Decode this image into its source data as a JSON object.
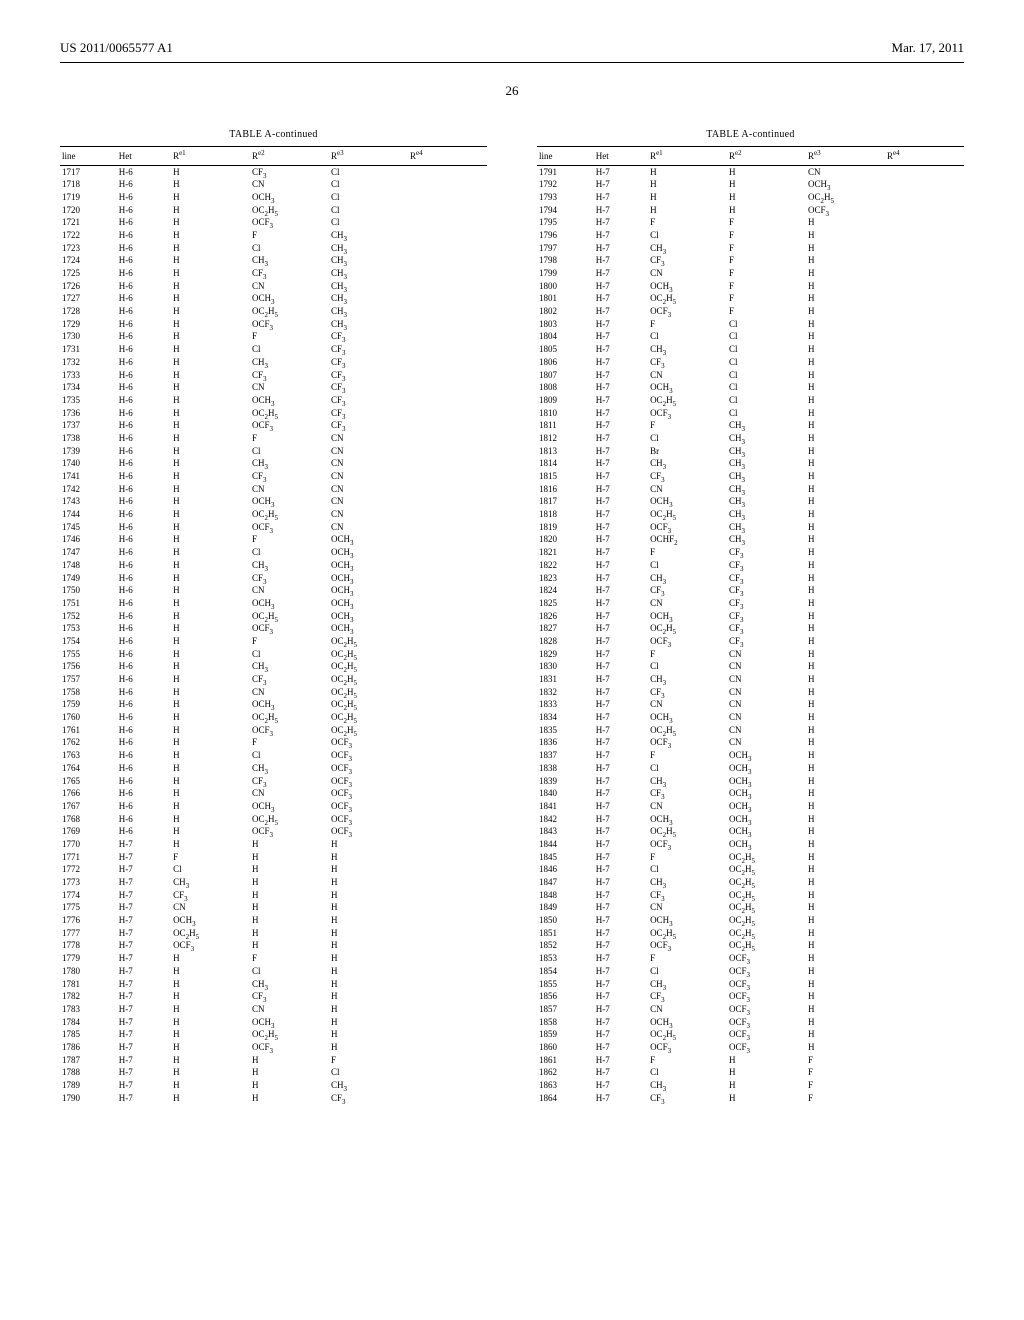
{
  "header": {
    "pub_number": "US 2011/0065577 A1",
    "pub_date": "Mar. 17, 2011"
  },
  "page_number": "26",
  "table_title": "TABLE A-continued",
  "columns": [
    "line",
    "Het",
    "R^e1",
    "R^e2",
    "R^e3",
    "R^e4"
  ],
  "left_table": {
    "rows": [
      [
        "1717",
        "H-6",
        "H",
        "CF3",
        "Cl",
        ""
      ],
      [
        "1718",
        "H-6",
        "H",
        "CN",
        "Cl",
        ""
      ],
      [
        "1719",
        "H-6",
        "H",
        "OCH3",
        "Cl",
        ""
      ],
      [
        "1720",
        "H-6",
        "H",
        "OC2H5",
        "Cl",
        ""
      ],
      [
        "1721",
        "H-6",
        "H",
        "OCF3",
        "Cl",
        ""
      ],
      [
        "1722",
        "H-6",
        "H",
        "F",
        "CH3",
        ""
      ],
      [
        "1723",
        "H-6",
        "H",
        "Cl",
        "CH3",
        ""
      ],
      [
        "1724",
        "H-6",
        "H",
        "CH3",
        "CH3",
        ""
      ],
      [
        "1725",
        "H-6",
        "H",
        "CF3",
        "CH3",
        ""
      ],
      [
        "1726",
        "H-6",
        "H",
        "CN",
        "CH3",
        ""
      ],
      [
        "1727",
        "H-6",
        "H",
        "OCH3",
        "CH3",
        ""
      ],
      [
        "1728",
        "H-6",
        "H",
        "OC2H5",
        "CH3",
        ""
      ],
      [
        "1729",
        "H-6",
        "H",
        "OCF3",
        "CH3",
        ""
      ],
      [
        "1730",
        "H-6",
        "H",
        "F",
        "CF3",
        ""
      ],
      [
        "1731",
        "H-6",
        "H",
        "Cl",
        "CF3",
        ""
      ],
      [
        "1732",
        "H-6",
        "H",
        "CH3",
        "CF3",
        ""
      ],
      [
        "1733",
        "H-6",
        "H",
        "CF3",
        "CF3",
        ""
      ],
      [
        "1734",
        "H-6",
        "H",
        "CN",
        "CF3",
        ""
      ],
      [
        "1735",
        "H-6",
        "H",
        "OCH3",
        "CF3",
        ""
      ],
      [
        "1736",
        "H-6",
        "H",
        "OC2H5",
        "CF3",
        ""
      ],
      [
        "1737",
        "H-6",
        "H",
        "OCF3",
        "CF3",
        ""
      ],
      [
        "1738",
        "H-6",
        "H",
        "F",
        "CN",
        ""
      ],
      [
        "1739",
        "H-6",
        "H",
        "Cl",
        "CN",
        ""
      ],
      [
        "1740",
        "H-6",
        "H",
        "CH3",
        "CN",
        ""
      ],
      [
        "1741",
        "H-6",
        "H",
        "CF3",
        "CN",
        ""
      ],
      [
        "1742",
        "H-6",
        "H",
        "CN",
        "CN",
        ""
      ],
      [
        "1743",
        "H-6",
        "H",
        "OCH3",
        "CN",
        ""
      ],
      [
        "1744",
        "H-6",
        "H",
        "OC2H5",
        "CN",
        ""
      ],
      [
        "1745",
        "H-6",
        "H",
        "OCF3",
        "CN",
        ""
      ],
      [
        "1746",
        "H-6",
        "H",
        "F",
        "OCH3",
        ""
      ],
      [
        "1747",
        "H-6",
        "H",
        "Cl",
        "OCH3",
        ""
      ],
      [
        "1748",
        "H-6",
        "H",
        "CH3",
        "OCH3",
        ""
      ],
      [
        "1749",
        "H-6",
        "H",
        "CF3",
        "OCH3",
        ""
      ],
      [
        "1750",
        "H-6",
        "H",
        "CN",
        "OCH3",
        ""
      ],
      [
        "1751",
        "H-6",
        "H",
        "OCH3",
        "OCH3",
        ""
      ],
      [
        "1752",
        "H-6",
        "H",
        "OC2H5",
        "OCH3",
        ""
      ],
      [
        "1753",
        "H-6",
        "H",
        "OCF3",
        "OCH3",
        ""
      ],
      [
        "1754",
        "H-6",
        "H",
        "F",
        "OC2H5",
        ""
      ],
      [
        "1755",
        "H-6",
        "H",
        "Cl",
        "OC2H5",
        ""
      ],
      [
        "1756",
        "H-6",
        "H",
        "CH3",
        "OC2H5",
        ""
      ],
      [
        "1757",
        "H-6",
        "H",
        "CF3",
        "OC2H5",
        ""
      ],
      [
        "1758",
        "H-6",
        "H",
        "CN",
        "OC2H5",
        ""
      ],
      [
        "1759",
        "H-6",
        "H",
        "OCH3",
        "OC2H5",
        ""
      ],
      [
        "1760",
        "H-6",
        "H",
        "OC2H5",
        "OC2H5",
        ""
      ],
      [
        "1761",
        "H-6",
        "H",
        "OCF3",
        "OC2H5",
        ""
      ],
      [
        "1762",
        "H-6",
        "H",
        "F",
        "OCF3",
        ""
      ],
      [
        "1763",
        "H-6",
        "H",
        "Cl",
        "OCF3",
        ""
      ],
      [
        "1764",
        "H-6",
        "H",
        "CH3",
        "OCF3",
        ""
      ],
      [
        "1765",
        "H-6",
        "H",
        "CF3",
        "OCF3",
        ""
      ],
      [
        "1766",
        "H-6",
        "H",
        "CN",
        "OCF3",
        ""
      ],
      [
        "1767",
        "H-6",
        "H",
        "OCH3",
        "OCF3",
        ""
      ],
      [
        "1768",
        "H-6",
        "H",
        "OC2H5",
        "OCF3",
        ""
      ],
      [
        "1769",
        "H-6",
        "H",
        "OCF3",
        "OCF3",
        ""
      ],
      [
        "1770",
        "H-7",
        "H",
        "H",
        "H",
        ""
      ],
      [
        "1771",
        "H-7",
        "F",
        "H",
        "H",
        ""
      ],
      [
        "1772",
        "H-7",
        "Cl",
        "H",
        "H",
        ""
      ],
      [
        "1773",
        "H-7",
        "CH3",
        "H",
        "H",
        ""
      ],
      [
        "1774",
        "H-7",
        "CF3",
        "H",
        "H",
        ""
      ],
      [
        "1775",
        "H-7",
        "CN",
        "H",
        "H",
        ""
      ],
      [
        "1776",
        "H-7",
        "OCH3",
        "H",
        "H",
        ""
      ],
      [
        "1777",
        "H-7",
        "OC2H5",
        "H",
        "H",
        ""
      ],
      [
        "1778",
        "H-7",
        "OCF3",
        "H",
        "H",
        ""
      ],
      [
        "1779",
        "H-7",
        "H",
        "F",
        "H",
        ""
      ],
      [
        "1780",
        "H-7",
        "H",
        "Cl",
        "H",
        ""
      ],
      [
        "1781",
        "H-7",
        "H",
        "CH3",
        "H",
        ""
      ],
      [
        "1782",
        "H-7",
        "H",
        "CF3",
        "H",
        ""
      ],
      [
        "1783",
        "H-7",
        "H",
        "CN",
        "H",
        ""
      ],
      [
        "1784",
        "H-7",
        "H",
        "OCH3",
        "H",
        ""
      ],
      [
        "1785",
        "H-7",
        "H",
        "OC2H5",
        "H",
        ""
      ],
      [
        "1786",
        "H-7",
        "H",
        "OCF3",
        "H",
        ""
      ],
      [
        "1787",
        "H-7",
        "H",
        "H",
        "F",
        ""
      ],
      [
        "1788",
        "H-7",
        "H",
        "H",
        "Cl",
        ""
      ],
      [
        "1789",
        "H-7",
        "H",
        "H",
        "CH3",
        ""
      ],
      [
        "1790",
        "H-7",
        "H",
        "H",
        "CF3",
        ""
      ]
    ]
  },
  "right_table": {
    "rows": [
      [
        "1791",
        "H-7",
        "H",
        "H",
        "CN",
        ""
      ],
      [
        "1792",
        "H-7",
        "H",
        "H",
        "OCH3",
        ""
      ],
      [
        "1793",
        "H-7",
        "H",
        "H",
        "OC2H5",
        ""
      ],
      [
        "1794",
        "H-7",
        "H",
        "H",
        "OCF3",
        ""
      ],
      [
        "1795",
        "H-7",
        "F",
        "F",
        "H",
        ""
      ],
      [
        "1796",
        "H-7",
        "Cl",
        "F",
        "H",
        ""
      ],
      [
        "1797",
        "H-7",
        "CH3",
        "F",
        "H",
        ""
      ],
      [
        "1798",
        "H-7",
        "CF3",
        "F",
        "H",
        ""
      ],
      [
        "1799",
        "H-7",
        "CN",
        "F",
        "H",
        ""
      ],
      [
        "1800",
        "H-7",
        "OCH3",
        "F",
        "H",
        ""
      ],
      [
        "1801",
        "H-7",
        "OC2H5",
        "F",
        "H",
        ""
      ],
      [
        "1802",
        "H-7",
        "OCF3",
        "F",
        "H",
        ""
      ],
      [
        "1803",
        "H-7",
        "F",
        "Cl",
        "H",
        ""
      ],
      [
        "1804",
        "H-7",
        "Cl",
        "Cl",
        "H",
        ""
      ],
      [
        "1805",
        "H-7",
        "CH3",
        "Cl",
        "H",
        ""
      ],
      [
        "1806",
        "H-7",
        "CF3",
        "Cl",
        "H",
        ""
      ],
      [
        "1807",
        "H-7",
        "CN",
        "Cl",
        "H",
        ""
      ],
      [
        "1808",
        "H-7",
        "OCH3",
        "Cl",
        "H",
        ""
      ],
      [
        "1809",
        "H-7",
        "OC2H5",
        "Cl",
        "H",
        ""
      ],
      [
        "1810",
        "H-7",
        "OCF3",
        "Cl",
        "H",
        ""
      ],
      [
        "1811",
        "H-7",
        "F",
        "CH3",
        "H",
        ""
      ],
      [
        "1812",
        "H-7",
        "Cl",
        "CH3",
        "H",
        ""
      ],
      [
        "1813",
        "H-7",
        "Br",
        "CH3",
        "H",
        ""
      ],
      [
        "1814",
        "H-7",
        "CH3",
        "CH3",
        "H",
        ""
      ],
      [
        "1815",
        "H-7",
        "CF3",
        "CH3",
        "H",
        ""
      ],
      [
        "1816",
        "H-7",
        "CN",
        "CH3",
        "H",
        ""
      ],
      [
        "1817",
        "H-7",
        "OCH3",
        "CH3",
        "H",
        ""
      ],
      [
        "1818",
        "H-7",
        "OC2H5",
        "CH3",
        "H",
        ""
      ],
      [
        "1819",
        "H-7",
        "OCF3",
        "CH3",
        "H",
        ""
      ],
      [
        "1820",
        "H-7",
        "OCHF2",
        "CH3",
        "H",
        ""
      ],
      [
        "1821",
        "H-7",
        "F",
        "CF3",
        "H",
        ""
      ],
      [
        "1822",
        "H-7",
        "Cl",
        "CF3",
        "H",
        ""
      ],
      [
        "1823",
        "H-7",
        "CH3",
        "CF3",
        "H",
        ""
      ],
      [
        "1824",
        "H-7",
        "CF3",
        "CF3",
        "H",
        ""
      ],
      [
        "1825",
        "H-7",
        "CN",
        "CF3",
        "H",
        ""
      ],
      [
        "1826",
        "H-7",
        "OCH3",
        "CF3",
        "H",
        ""
      ],
      [
        "1827",
        "H-7",
        "OC2H5",
        "CF3",
        "H",
        ""
      ],
      [
        "1828",
        "H-7",
        "OCF3",
        "CF3",
        "H",
        ""
      ],
      [
        "1829",
        "H-7",
        "F",
        "CN",
        "H",
        ""
      ],
      [
        "1830",
        "H-7",
        "Cl",
        "CN",
        "H",
        ""
      ],
      [
        "1831",
        "H-7",
        "CH3",
        "CN",
        "H",
        ""
      ],
      [
        "1832",
        "H-7",
        "CF3",
        "CN",
        "H",
        ""
      ],
      [
        "1833",
        "H-7",
        "CN",
        "CN",
        "H",
        ""
      ],
      [
        "1834",
        "H-7",
        "OCH3",
        "CN",
        "H",
        ""
      ],
      [
        "1835",
        "H-7",
        "OC2H5",
        "CN",
        "H",
        ""
      ],
      [
        "1836",
        "H-7",
        "OCF3",
        "CN",
        "H",
        ""
      ],
      [
        "1837",
        "H-7",
        "F",
        "OCH3",
        "H",
        ""
      ],
      [
        "1838",
        "H-7",
        "Cl",
        "OCH3",
        "H",
        ""
      ],
      [
        "1839",
        "H-7",
        "CH3",
        "OCH3",
        "H",
        ""
      ],
      [
        "1840",
        "H-7",
        "CF3",
        "OCH3",
        "H",
        ""
      ],
      [
        "1841",
        "H-7",
        "CN",
        "OCH3",
        "H",
        ""
      ],
      [
        "1842",
        "H-7",
        "OCH3",
        "OCH3",
        "H",
        ""
      ],
      [
        "1843",
        "H-7",
        "OC2H5",
        "OCH3",
        "H",
        ""
      ],
      [
        "1844",
        "H-7",
        "OCF3",
        "OCH3",
        "H",
        ""
      ],
      [
        "1845",
        "H-7",
        "F",
        "OC2H5",
        "H",
        ""
      ],
      [
        "1846",
        "H-7",
        "Cl",
        "OC2H5",
        "H",
        ""
      ],
      [
        "1847",
        "H-7",
        "CH3",
        "OC2H5",
        "H",
        ""
      ],
      [
        "1848",
        "H-7",
        "CF3",
        "OC2H5",
        "H",
        ""
      ],
      [
        "1849",
        "H-7",
        "CN",
        "OC2H5",
        "H",
        ""
      ],
      [
        "1850",
        "H-7",
        "OCH3",
        "OC2H5",
        "H",
        ""
      ],
      [
        "1851",
        "H-7",
        "OC2H5",
        "OC2H5",
        "H",
        ""
      ],
      [
        "1852",
        "H-7",
        "OCF3",
        "OC2H5",
        "H",
        ""
      ],
      [
        "1853",
        "H-7",
        "F",
        "OCF3",
        "H",
        ""
      ],
      [
        "1854",
        "H-7",
        "Cl",
        "OCF3",
        "H",
        ""
      ],
      [
        "1855",
        "H-7",
        "CH3",
        "OCF3",
        "H",
        ""
      ],
      [
        "1856",
        "H-7",
        "CF3",
        "OCF3",
        "H",
        ""
      ],
      [
        "1857",
        "H-7",
        "CN",
        "OCF3",
        "H",
        ""
      ],
      [
        "1858",
        "H-7",
        "OCH3",
        "OCF3",
        "H",
        ""
      ],
      [
        "1859",
        "H-7",
        "OC2H5",
        "OCF3",
        "H",
        ""
      ],
      [
        "1860",
        "H-7",
        "OCF3",
        "OCF3",
        "H",
        ""
      ],
      [
        "1861",
        "H-7",
        "F",
        "H",
        "F",
        ""
      ],
      [
        "1862",
        "H-7",
        "Cl",
        "H",
        "F",
        ""
      ],
      [
        "1863",
        "H-7",
        "CH3",
        "H",
        "F",
        ""
      ],
      [
        "1864",
        "H-7",
        "CF3",
        "H",
        "F",
        ""
      ]
    ]
  }
}
